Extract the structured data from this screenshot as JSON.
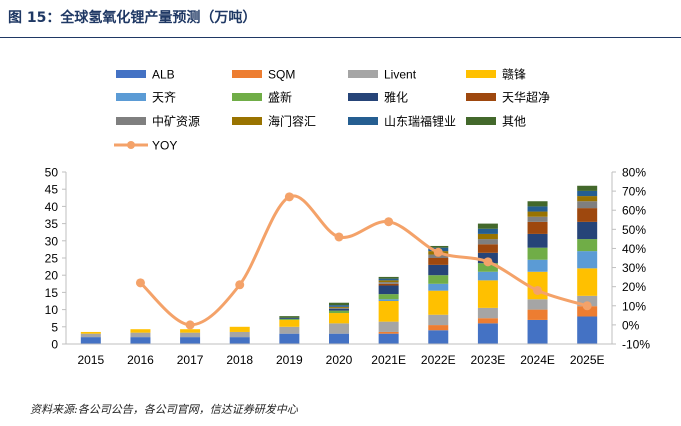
{
  "figure": {
    "title": "图 15：全球氢氧化锂产量预测（万吨）",
    "source": "资料来源:各公司公告，各公司官网，信达证券研发中心"
  },
  "chart_data": {
    "type": "bar",
    "stacked": true,
    "categories": [
      "2015",
      "2016",
      "2017",
      "2018",
      "2019",
      "2020",
      "2021E",
      "2022E",
      "2023E",
      "2024E",
      "2025E"
    ],
    "ylim": [
      0,
      50
    ],
    "yticks": [
      "0",
      "5",
      "10",
      "15",
      "20",
      "25",
      "30",
      "35",
      "40",
      "45",
      "50"
    ],
    "y2lim": [
      -10,
      80
    ],
    "y2ticks": [
      "-10%",
      "0%",
      "10%",
      "20%",
      "30%",
      "40%",
      "50%",
      "60%",
      "70%",
      "80%"
    ],
    "legend_position": "top",
    "grid": false,
    "series": [
      {
        "name": "ALB",
        "color": "#4472c4",
        "values": [
          2.0,
          2.0,
          2.0,
          2.0,
          3.0,
          3.0,
          3.0,
          4.0,
          6.0,
          7.0,
          8.0
        ]
      },
      {
        "name": "SQM",
        "color": "#ed7d31",
        "values": [
          0,
          0,
          0,
          0,
          0,
          0,
          0.5,
          1.5,
          1.5,
          3.0,
          3.0
        ]
      },
      {
        "name": "Livent",
        "color": "#a5a5a5",
        "values": [
          1.0,
          1.3,
          1.3,
          1.5,
          2.0,
          3.0,
          3.0,
          3.0,
          3.0,
          3.0,
          3.0
        ]
      },
      {
        "name": "赣锋",
        "color": "#ffc000",
        "values": [
          0.5,
          1.0,
          1.0,
          1.5,
          2.0,
          3.0,
          6.0,
          7.0,
          8.0,
          8.0,
          8.0
        ]
      },
      {
        "name": "天齐",
        "color": "#5b9bd5",
        "values": [
          0,
          0,
          0,
          0,
          0,
          0,
          0.5,
          2.0,
          2.5,
          3.5,
          5.0
        ]
      },
      {
        "name": "盛新",
        "color": "#70ad47",
        "values": [
          0,
          0,
          0,
          0,
          0.3,
          0.7,
          1.5,
          2.5,
          2.5,
          3.5,
          3.5
        ]
      },
      {
        "name": "雅化",
        "color": "#264478",
        "values": [
          0,
          0,
          0,
          0,
          0.3,
          0.5,
          2.5,
          3.0,
          3.0,
          4.0,
          5.0
        ]
      },
      {
        "name": "天华超净",
        "color": "#9e480e",
        "values": [
          0,
          0,
          0,
          0,
          0,
          0,
          0.5,
          2.0,
          2.5,
          3.5,
          4.0
        ]
      },
      {
        "name": "中矿资源",
        "color": "#7f7f7f",
        "values": [
          0,
          0,
          0,
          0,
          0,
          0.3,
          0.5,
          1.0,
          1.5,
          1.5,
          2.0
        ]
      },
      {
        "name": "海门容汇",
        "color": "#997300",
        "values": [
          0,
          0,
          0,
          0,
          0,
          0.3,
          0.5,
          1.0,
          1.5,
          1.5,
          1.5
        ]
      },
      {
        "name": "山东瑞福锂业",
        "color": "#255e91",
        "values": [
          0,
          0,
          0,
          0,
          0,
          0.5,
          0.5,
          1.0,
          1.5,
          1.5,
          1.5
        ]
      },
      {
        "name": "其他",
        "color": "#43682b",
        "values": [
          0,
          0,
          0,
          0,
          0.5,
          0.7,
          0.5,
          0.5,
          1.5,
          1.5,
          1.5
        ]
      }
    ],
    "line": {
      "name": "YOY",
      "color": "#f4a269",
      "axis": "right",
      "values": [
        null,
        22,
        0,
        21,
        67,
        46,
        54,
        38,
        33,
        18,
        10
      ]
    }
  }
}
